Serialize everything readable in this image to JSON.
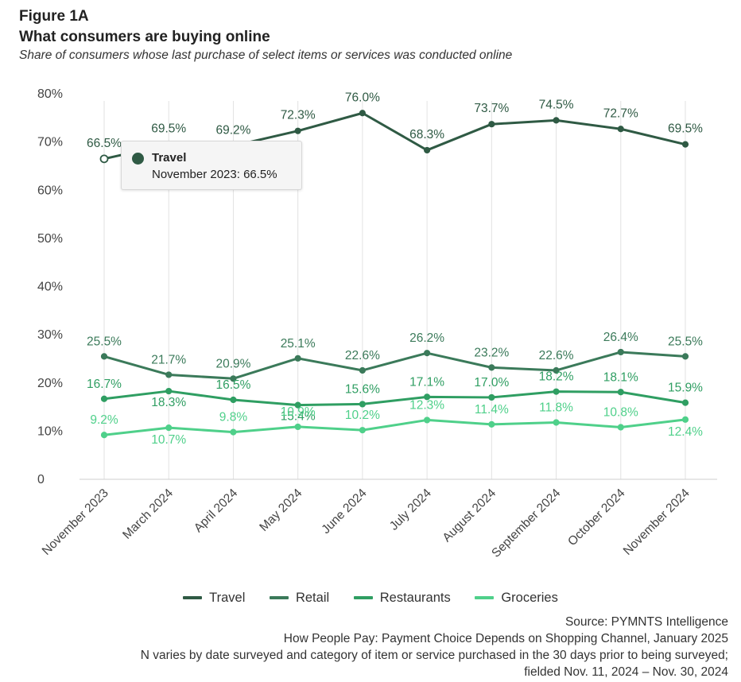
{
  "header": {
    "figure_label": "Figure 1A",
    "title": "What consumers are buying online",
    "subtitle": "Share of consumers whose last purchase of select items or services was conducted online"
  },
  "chart_data": {
    "type": "line",
    "categories": [
      "November 2023",
      "March 2024",
      "April 2024",
      "May 2024",
      "June 2024",
      "July 2024",
      "August 2024",
      "September 2024",
      "October 2024",
      "November 2024"
    ],
    "y_ticks": [
      "0",
      "10%",
      "20%",
      "30%",
      "40%",
      "50%",
      "60%",
      "70%",
      "80%"
    ],
    "ylim": [
      0,
      80
    ],
    "grid": "vertical",
    "legend_position": "bottom",
    "series": [
      {
        "name": "Travel",
        "color": "#2f5a44",
        "values": [
          66.5,
          69.5,
          69.2,
          72.3,
          76.0,
          68.3,
          73.7,
          74.5,
          72.7,
          69.5
        ],
        "labels": [
          "66.5%",
          "69.5%",
          "69.2%",
          "72.3%",
          "76.0%",
          "68.3%",
          "73.7%",
          "74.5%",
          "72.7%",
          "69.5%"
        ]
      },
      {
        "name": "Retail",
        "color": "#3b7a5a",
        "values": [
          25.5,
          21.7,
          20.9,
          25.1,
          22.6,
          26.2,
          23.2,
          22.6,
          26.4,
          25.5
        ],
        "labels": [
          "25.5%",
          "21.7%",
          "20.9%",
          "25.1%",
          "22.6%",
          "26.2%",
          "23.2%",
          "22.6%",
          "26.4%",
          "25.5%"
        ]
      },
      {
        "name": "Restaurants",
        "color": "#2f9e62",
        "values": [
          16.7,
          18.3,
          16.5,
          15.4,
          15.6,
          17.1,
          17.0,
          18.2,
          18.1,
          15.9
        ],
        "labels": [
          "16.7%",
          "18.3%",
          "16.5%",
          "15.4%",
          "15.6%",
          "17.1%",
          "17.0%",
          "18.2%",
          "18.1%",
          "15.9%"
        ]
      },
      {
        "name": "Groceries",
        "color": "#4fd08a",
        "values": [
          9.2,
          10.7,
          9.8,
          10.9,
          10.2,
          12.3,
          11.4,
          11.8,
          10.8,
          12.4
        ],
        "labels": [
          "9.2%",
          "10.7%",
          "9.8%",
          "10.9%",
          "10.2%",
          "12.3%",
          "11.4%",
          "11.8%",
          "10.8%",
          "12.4%"
        ]
      }
    ],
    "tooltip": {
      "series": "Travel",
      "text": "November 2023: 66.5%"
    }
  },
  "source": {
    "line1": "Source: PYMNTS Intelligence",
    "line2": "How People Pay: Payment Choice Depends on Shopping Channel, January 2025",
    "line3": "N varies by date surveyed and category of item or service purchased in the 30 days prior to being surveyed;",
    "line4": "fielded Nov. 11, 2024 – Nov. 30, 2024"
  }
}
